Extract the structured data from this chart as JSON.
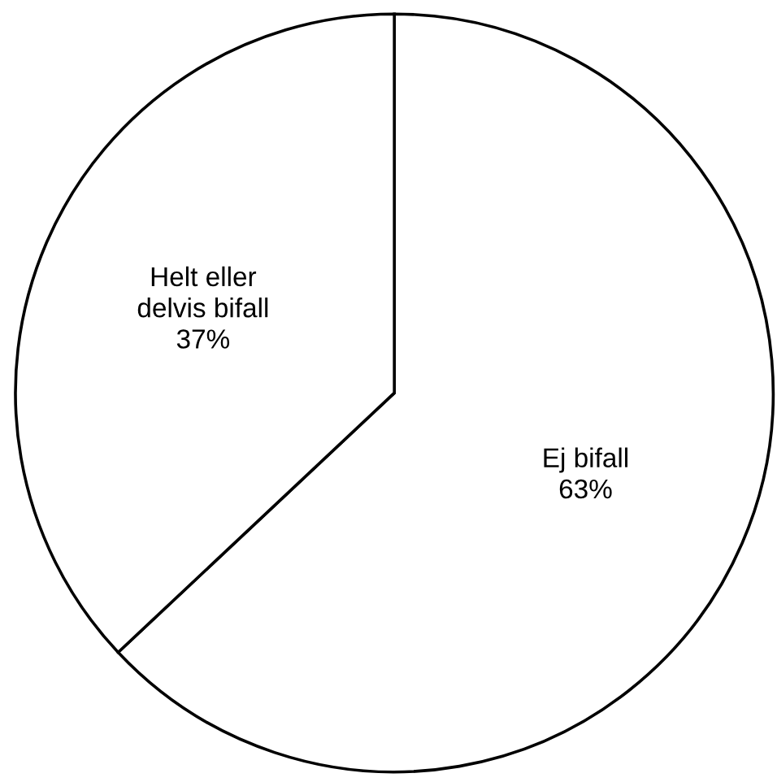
{
  "chart_data": {
    "type": "pie",
    "categories": [
      "Ej bifall",
      "Helt eller\ndelvis bifall"
    ],
    "values": [
      63,
      37
    ],
    "value_labels": [
      "63%",
      "37%"
    ],
    "colors": [
      "#ffffff",
      "#ffffff"
    ]
  }
}
